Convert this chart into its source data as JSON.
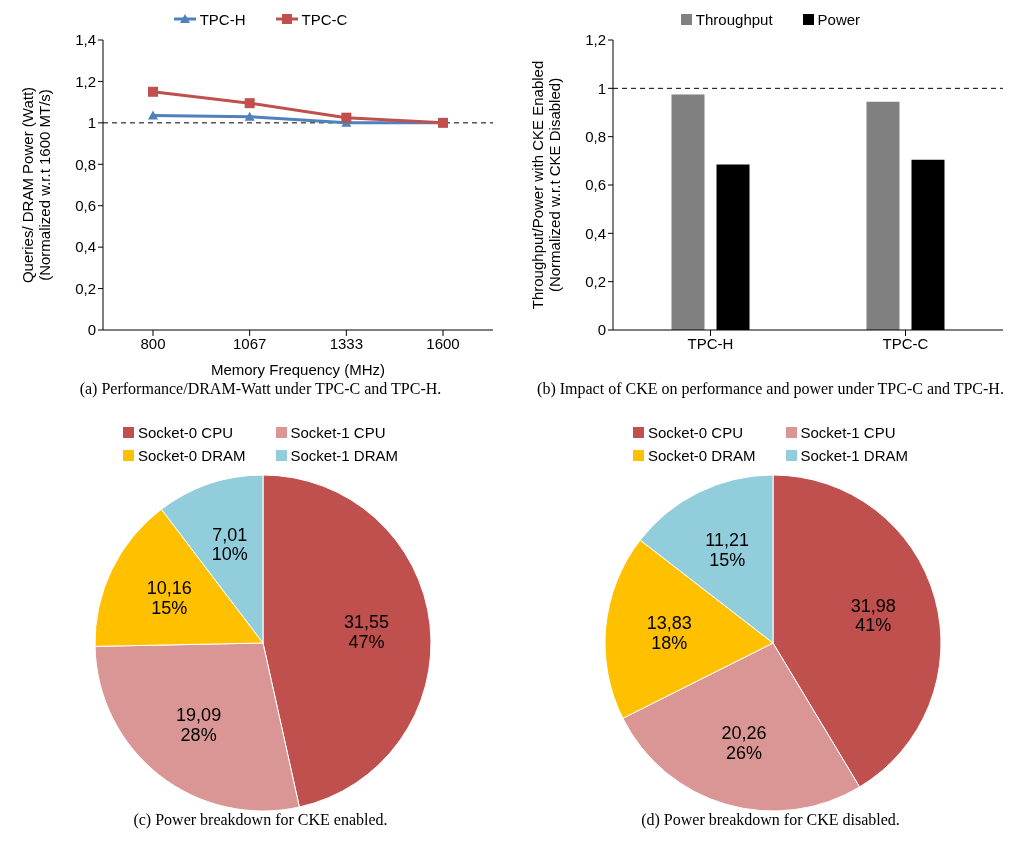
{
  "chart_data": [
    {
      "type": "line",
      "categories": [
        "800",
        "1067",
        "1333",
        "1600"
      ],
      "xlabel": "Memory Frequency (MHz)",
      "ylabel": "Queries/ DRAM Power (Watt)\n(Normalized w.r.t 1600 MT/s)",
      "ylim": [
        0,
        1.4
      ],
      "yticks": [
        {
          "value": 0,
          "label": "0"
        },
        {
          "value": 0.2,
          "label": "0,2"
        },
        {
          "value": 0.4,
          "label": "0,4"
        },
        {
          "value": 0.6,
          "label": "0,6"
        },
        {
          "value": 0.8,
          "label": "0,8"
        },
        {
          "value": 1,
          "label": "1"
        },
        {
          "value": 1.2,
          "label": "1,2"
        },
        {
          "value": 1.4,
          "label": "1,4"
        }
      ],
      "legend": "top",
      "line_style": "solid",
      "series": [
        {
          "name": "TPC-H",
          "color": "#4f81bd",
          "marker": "triangle",
          "values": [
            1.035,
            1.03,
            1.0,
            1.0
          ]
        },
        {
          "name": "TPC-C",
          "color": "#c0504d",
          "marker": "square",
          "values": [
            1.15,
            1.095,
            1.025,
            1.0
          ]
        }
      ],
      "ref_lines": [
        {
          "axis": "y",
          "value": 1,
          "color": "#000000",
          "line_style": "dashed"
        }
      ],
      "annotations": [
        "(a) Performance/DRAM-Watt under TPC-C and TPC-H."
      ]
    },
    {
      "type": "bar",
      "categories": [
        "TPC-H",
        "TPC-C"
      ],
      "ylabel": "Throughput/Power with CKE Enabled\n(Normalized w.r.t CKE Disabled)",
      "ylim": [
        0,
        1.2
      ],
      "yticks": [
        {
          "value": 0,
          "label": "0"
        },
        {
          "value": 0.2,
          "label": "0,2"
        },
        {
          "value": 0.4,
          "label": "0,4"
        },
        {
          "value": 0.6,
          "label": "0,6"
        },
        {
          "value": 0.8,
          "label": "0,8"
        },
        {
          "value": 1,
          "label": "1"
        },
        {
          "value": 1.2,
          "label": "1,2"
        }
      ],
      "legend": "top",
      "series": [
        {
          "name": "Throughput",
          "color": "#808080",
          "values": [
            0.975,
            0.945
          ]
        },
        {
          "name": "Power",
          "color": "#000000",
          "values": [
            0.685,
            0.705
          ]
        }
      ],
      "ref_lines": [
        {
          "axis": "y",
          "value": 1,
          "color": "#000000",
          "line_style": "dashed"
        }
      ],
      "annotations": [
        "(b) Impact of CKE on performance and power under TPC-C and TPC-H."
      ]
    },
    {
      "type": "pie",
      "categories": [
        "Socket-0 CPU",
        "Socket-1 CPU",
        "Socket-0 DRAM",
        "Socket-1 DRAM"
      ],
      "values": [
        31.55,
        19.09,
        10.16,
        7.01
      ],
      "colors": [
        "#c0504d",
        "#d99694",
        "#ffc000",
        "#92cddc"
      ],
      "value_labels": [
        "31,55\n47%",
        "19,09\n28%",
        "10,16\n15%",
        "7,01\n10%"
      ],
      "legend": "top",
      "annotations": [
        "(c) Power breakdown for CKE enabled."
      ]
    },
    {
      "type": "pie",
      "categories": [
        "Socket-0 CPU",
        "Socket-1 CPU",
        "Socket-0 DRAM",
        "Socket-1 DRAM"
      ],
      "values": [
        31.98,
        20.26,
        13.83,
        11.21
      ],
      "colors": [
        "#c0504d",
        "#d99694",
        "#ffc000",
        "#92cddc"
      ],
      "value_labels": [
        "31,98\n41%",
        "20,26\n26%",
        "13,83\n18%",
        "11,21\n15%"
      ],
      "legend": "top",
      "annotations": [
        "(d) Power breakdown for CKE disabled."
      ]
    }
  ]
}
